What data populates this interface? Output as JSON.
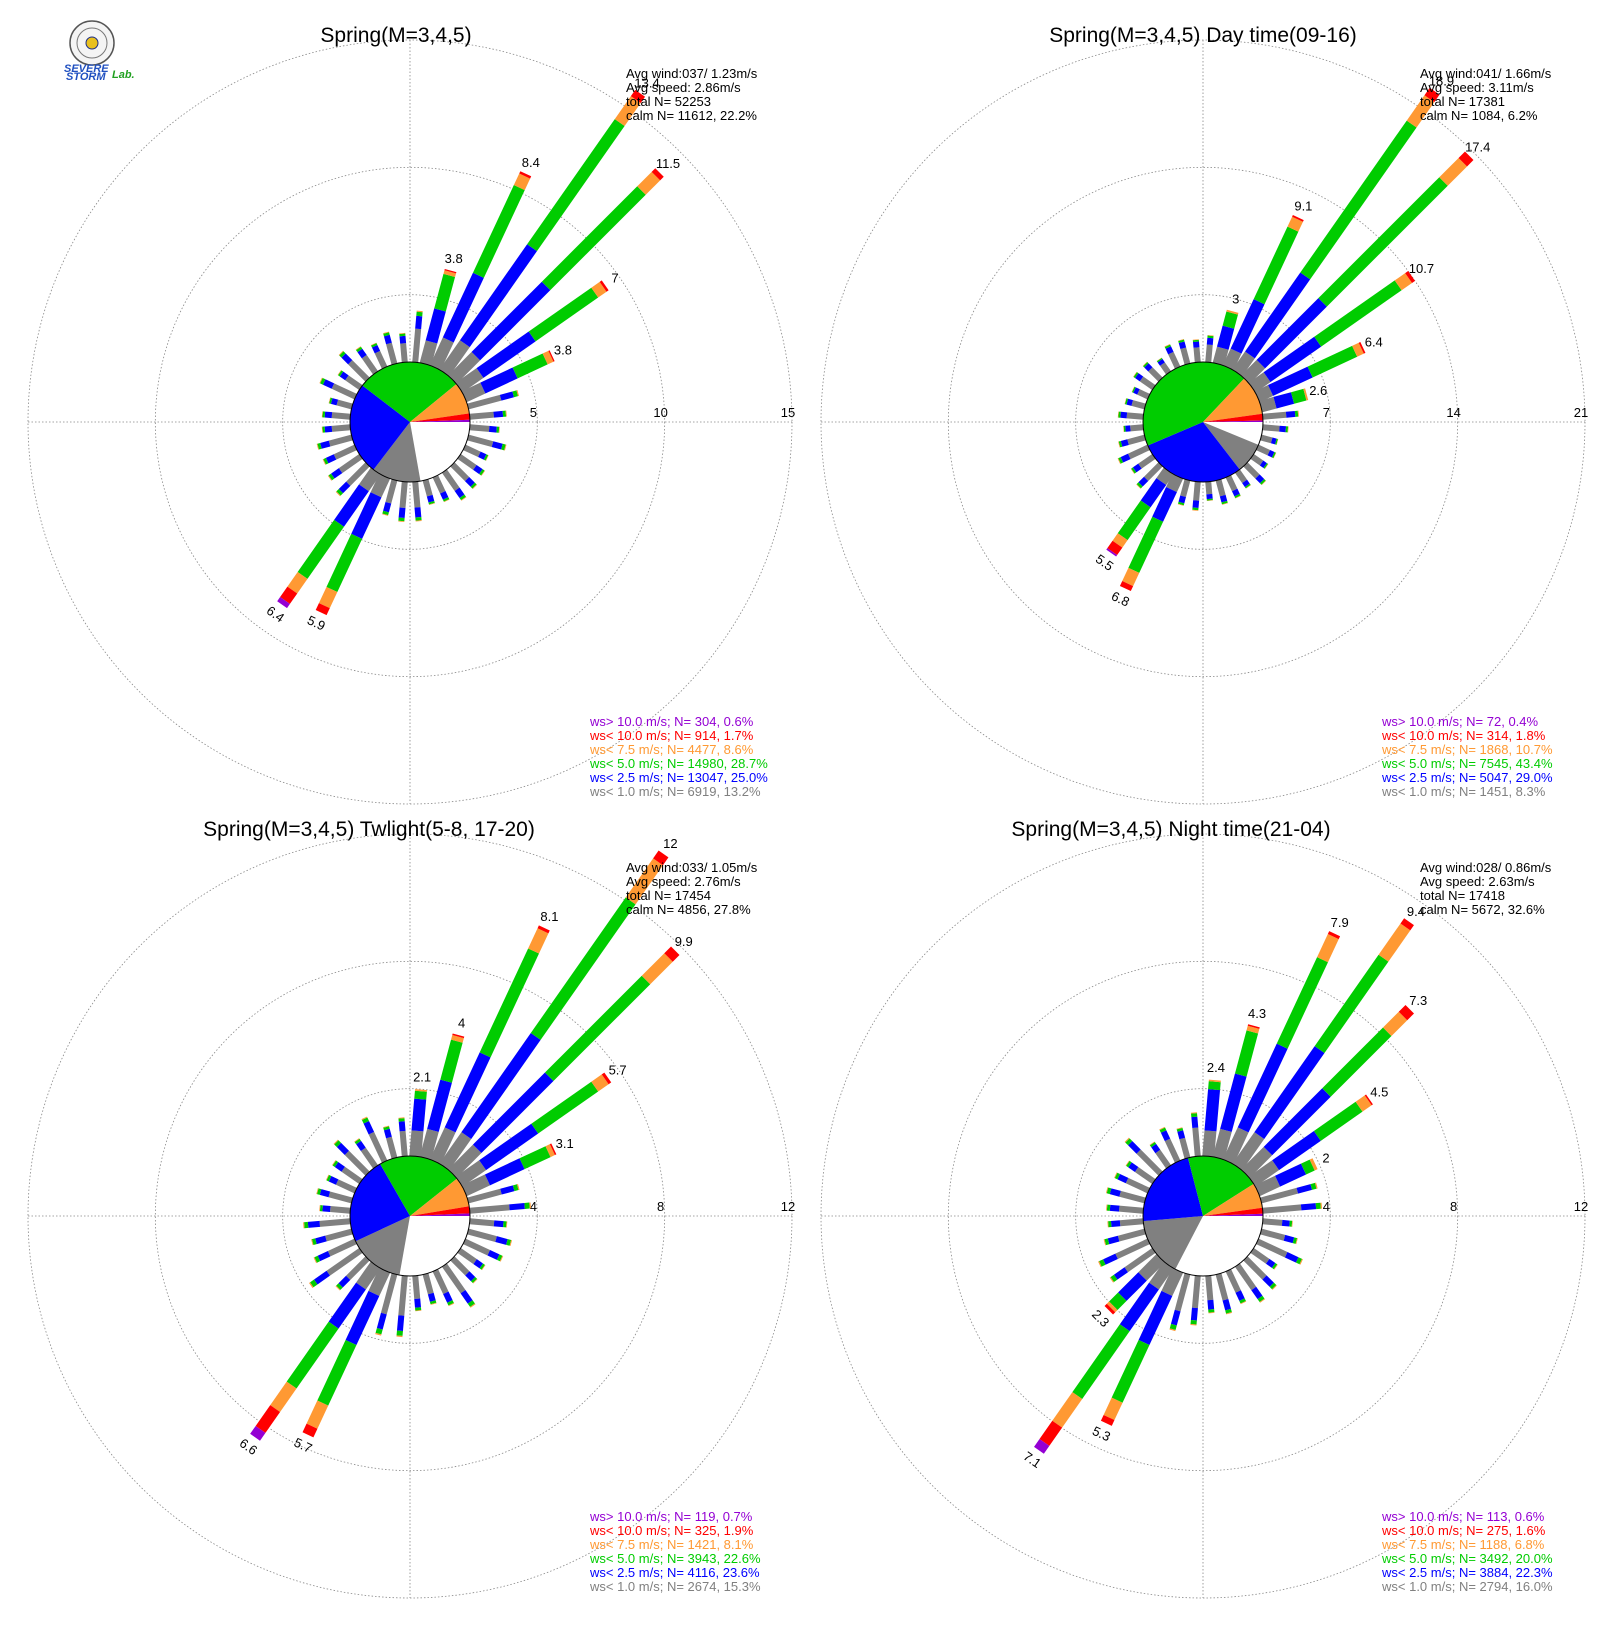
{
  "colors": {
    "gt10": "#9400D3",
    "lt10": "#ff0000",
    "lt75": "#ff9933",
    "lt5": "#00cc00",
    "lt25": "#0000ff",
    "lt1": "#808080",
    "grid": "#888888"
  },
  "logo": {
    "line1": "SEVERE",
    "line2": "STORM",
    "lab": "Lab."
  },
  "chart_data": [
    {
      "type": "wind-rose",
      "title": "Spring(M=3,4,5)",
      "rmax": 15,
      "rings": [
        5,
        10,
        15
      ],
      "info": [
        "Avg wind:037/ 1.23m/s",
        "Avg speed: 2.86m/s",
        "total N=       52253",
        "calm N=  11612,  22.2%"
      ],
      "legend": [
        "ws> 10.0 m/s; N=   304,  0.6%",
        "ws< 10.0 m/s; N=   914,  1.7%",
        "ws<  7.5 m/s; N=  4477,  8.6%",
        "ws<  5.0 m/s; N= 14980, 28.7%",
        "ws<  2.5 m/s; N= 13047, 25.0%",
        "ws<  1.0 m/s; N=  6919, 13.2%"
      ],
      "pie": [
        22.2,
        13.2,
        25.0,
        28.7,
        8.6,
        1.7,
        0.6
      ],
      "labeled_bars": [
        {
          "dir": 15,
          "total": 3.8,
          "segs": [
            0.9,
            1.3,
            1.4,
            0.15,
            0.05,
            0
          ]
        },
        {
          "dir": 25,
          "total": 8.4,
          "segs": [
            1.2,
            2.8,
            3.8,
            0.5,
            0.1,
            0
          ]
        },
        {
          "dir": 35,
          "total": 13.4,
          "segs": [
            1.4,
            4.6,
            6.0,
            1.1,
            0.3,
            0
          ]
        },
        {
          "dir": 45,
          "total": 11.5,
          "segs": [
            1.3,
            3.9,
            5.3,
            0.8,
            0.2,
            0
          ]
        },
        {
          "dir": 55,
          "total": 7.0,
          "segs": [
            1.0,
            2.5,
            3.0,
            0.4,
            0.1,
            0
          ]
        },
        {
          "dir": 65,
          "total": 3.8,
          "segs": [
            0.8,
            1.4,
            1.3,
            0.25,
            0.05,
            0
          ]
        },
        {
          "dir": 215,
          "total": 6.4,
          "segs": [
            0.8,
            1.7,
            2.5,
            0.7,
            0.5,
            0.2
          ]
        },
        {
          "dir": 205,
          "total": 5.9,
          "segs": [
            0.8,
            1.8,
            2.3,
            0.7,
            0.3,
            0
          ]
        }
      ]
    },
    {
      "type": "wind-rose",
      "title": "Spring(M=3,4,5) Day time(09-16)",
      "rmax": 21,
      "rings": [
        7,
        14,
        21
      ],
      "info": [
        "Avg wind:041/ 1.66m/s",
        "Avg speed: 3.11m/s",
        "total N=       17381",
        "calm N=   1084,   6.2%"
      ],
      "legend": [
        "ws> 10.0 m/s; N=    72,  0.4%",
        "ws< 10.0 m/s; N=   314,  1.8%",
        "ws<  7.5 m/s; N=  1868, 10.7%",
        "ws<  5.0 m/s; N=  7545, 43.4%",
        "ws<  2.5 m/s; N=  5047, 29.0%",
        "ws<  1.0 m/s; N=  1451,  8.3%"
      ],
      "pie": [
        6.2,
        8.3,
        29.0,
        43.4,
        10.7,
        1.8,
        0.4
      ],
      "labeled_bars": [
        {
          "dir": 15,
          "total": 3.0,
          "segs": [
            0.9,
            1.2,
            0.8,
            0.1,
            0,
            0
          ]
        },
        {
          "dir": 25,
          "total": 9.1,
          "segs": [
            1.0,
            3.0,
            4.4,
            0.6,
            0.1,
            0
          ]
        },
        {
          "dir": 35,
          "total": 18.9,
          "segs": [
            1.2,
            5.3,
            10.2,
            1.7,
            0.5,
            0
          ]
        },
        {
          "dir": 45,
          "total": 17.4,
          "segs": [
            1.2,
            4.8,
            9.4,
            1.5,
            0.5,
            0
          ]
        },
        {
          "dir": 55,
          "total": 10.7,
          "segs": [
            1.0,
            3.4,
            5.4,
            0.7,
            0.2,
            0
          ]
        },
        {
          "dir": 65,
          "total": 6.4,
          "segs": [
            0.8,
            2.4,
            2.7,
            0.4,
            0.1,
            0
          ]
        },
        {
          "dir": 75,
          "total": 2.6,
          "segs": [
            0.8,
            1.0,
            0.7,
            0.1,
            0,
            0
          ]
        },
        {
          "dir": 215,
          "total": 5.5,
          "segs": [
            0.7,
            1.5,
            2.2,
            0.5,
            0.5,
            0.1
          ]
        },
        {
          "dir": 205,
          "total": 6.8,
          "segs": [
            0.8,
            1.8,
            3.1,
            0.8,
            0.3,
            0
          ]
        }
      ]
    },
    {
      "type": "wind-rose",
      "title": "Spring(M=3,4,5) Twlight(5-8, 17-20)",
      "rmax": 12,
      "rings": [
        4,
        8,
        12
      ],
      "info": [
        "Avg wind:033/ 1.05m/s",
        "Avg speed: 2.76m/s",
        "total N=       17454",
        "calm N=   4856,  27.8%"
      ],
      "legend": [
        "ws> 10.0 m/s; N=   119,  0.7%",
        "ws< 10.0 m/s; N=   325,  1.9%",
        "ws<  7.5 m/s; N=  1421,  8.1%",
        "ws<  5.0 m/s; N=  3943, 22.6%",
        "ws<  2.5 m/s; N=  4116, 23.6%",
        "ws<  1.0 m/s; N=  2674, 15.3%"
      ],
      "pie": [
        27.8,
        15.3,
        23.6,
        22.6,
        8.1,
        1.9,
        0.7
      ],
      "labeled_bars": [
        {
          "dir": 5,
          "total": 2.1,
          "segs": [
            0.8,
            1.0,
            0.25,
            0.05,
            0,
            0
          ]
        },
        {
          "dir": 15,
          "total": 4.0,
          "segs": [
            0.9,
            1.6,
            1.3,
            0.15,
            0.05,
            0
          ]
        },
        {
          "dir": 25,
          "total": 8.1,
          "segs": [
            1.1,
            2.6,
            3.6,
            0.7,
            0.1,
            0
          ]
        },
        {
          "dir": 35,
          "total": 12.0,
          "segs": [
            1.2,
            3.8,
            5.2,
            1.5,
            0.3,
            0
          ]
        },
        {
          "dir": 45,
          "total": 9.9,
          "segs": [
            1.1,
            3.2,
            4.3,
            1.0,
            0.3,
            0
          ]
        },
        {
          "dir": 55,
          "total": 5.7,
          "segs": [
            0.9,
            2.0,
            2.3,
            0.4,
            0.1,
            0
          ]
        },
        {
          "dir": 65,
          "total": 3.1,
          "segs": [
            0.8,
            1.2,
            0.9,
            0.15,
            0.05,
            0
          ]
        },
        {
          "dir": 215,
          "total": 6.6,
          "segs": [
            0.8,
            1.5,
            2.3,
            0.9,
            0.8,
            0.3
          ]
        },
        {
          "dir": 205,
          "total": 5.7,
          "segs": [
            0.8,
            1.7,
            2.1,
            0.8,
            0.3,
            0
          ]
        }
      ]
    },
    {
      "type": "wind-rose",
      "title": "Spring(M=3,4,5) Night time(21-04)",
      "rmax": 12,
      "rings": [
        4,
        8,
        12
      ],
      "info": [
        "Avg wind:028/ 0.86m/s",
        "Avg speed: 2.63m/s",
        "total N=       17418",
        "calm N=   5672,  32.6%"
      ],
      "legend": [
        "ws> 10.0 m/s; N=   113,  0.6%",
        "ws< 10.0 m/s; N=   275,  1.6%",
        "ws<  7.5 m/s; N=  1188,  6.8%",
        "ws<  5.0 m/s; N=  3492, 20.0%",
        "ws<  2.5 m/s; N=  3884, 22.3%",
        "ws<  1.0 m/s; N=  2794, 16.0%"
      ],
      "pie": [
        32.6,
        16.0,
        22.3,
        20.0,
        6.8,
        1.6,
        0.6
      ],
      "labeled_bars": [
        {
          "dir": 5,
          "total": 2.4,
          "segs": [
            0.8,
            1.3,
            0.25,
            0.05,
            0,
            0
          ]
        },
        {
          "dir": 15,
          "total": 4.3,
          "segs": [
            0.9,
            1.8,
            1.4,
            0.15,
            0.05,
            0
          ]
        },
        {
          "dir": 25,
          "total": 7.9,
          "segs": [
            1.1,
            2.9,
            3.0,
            0.8,
            0.1,
            0
          ]
        },
        {
          "dir": 35,
          "total": 9.4,
          "segs": [
            1.2,
            3.3,
            3.5,
            1.2,
            0.2,
            0
          ]
        },
        {
          "dir": 45,
          "total": 7.3,
          "segs": [
            1.0,
            2.6,
            2.7,
            0.7,
            0.3,
            0
          ]
        },
        {
          "dir": 55,
          "total": 4.5,
          "segs": [
            0.9,
            1.6,
            1.6,
            0.35,
            0.05,
            0
          ]
        },
        {
          "dir": 65,
          "total": 2.0,
          "segs": [
            0.7,
            0.9,
            0.3,
            0.1,
            0,
            0
          ]
        },
        {
          "dir": 215,
          "total": 7.1,
          "segs": [
            0.8,
            1.6,
            2.6,
            1.1,
            0.7,
            0.3
          ]
        },
        {
          "dir": 205,
          "total": 5.3,
          "segs": [
            0.8,
            1.7,
            2.0,
            0.6,
            0.2,
            0
          ]
        },
        {
          "dir": 225,
          "total": 2.3,
          "segs": [
            0.8,
            0.9,
            0.4,
            0.1,
            0.1,
            0
          ]
        }
      ]
    }
  ]
}
